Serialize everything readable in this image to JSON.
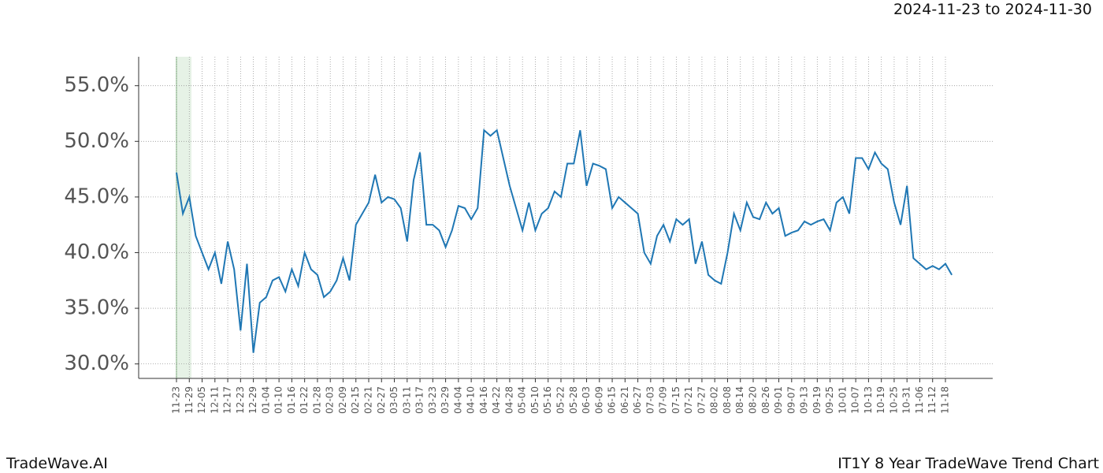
{
  "header": {
    "date_range": "2024-11-23 to 2024-11-30"
  },
  "footer": {
    "brand": "TradeWave.AI",
    "chart_name": "IT1Y 8 Year TradeWave Trend Chart"
  },
  "chart_data": {
    "type": "line",
    "x": [
      "11-23",
      "11-26",
      "11-29",
      "12-02",
      "12-05",
      "12-08",
      "12-11",
      "12-14",
      "12-17",
      "12-20",
      "12-23",
      "12-26",
      "12-29",
      "01-01",
      "01-04",
      "01-07",
      "01-10",
      "01-13",
      "01-16",
      "01-19",
      "01-22",
      "01-25",
      "01-28",
      "01-31",
      "02-03",
      "02-06",
      "02-09",
      "02-12",
      "02-15",
      "02-18",
      "02-21",
      "02-24",
      "02-27",
      "03-02",
      "03-05",
      "03-08",
      "03-11",
      "03-14",
      "03-17",
      "03-20",
      "03-23",
      "03-26",
      "03-29",
      "04-01",
      "04-04",
      "04-07",
      "04-10",
      "04-13",
      "04-16",
      "04-19",
      "04-22",
      "04-25",
      "04-28",
      "05-01",
      "05-04",
      "05-07",
      "05-10",
      "05-13",
      "05-16",
      "05-19",
      "05-22",
      "05-25",
      "05-28",
      "05-31",
      "06-03",
      "06-06",
      "06-09",
      "06-12",
      "06-15",
      "06-18",
      "06-21",
      "06-24",
      "06-27",
      "06-30",
      "07-03",
      "07-06",
      "07-09",
      "07-12",
      "07-15",
      "07-18",
      "07-21",
      "07-24",
      "07-27",
      "07-30",
      "08-02",
      "08-05",
      "08-08",
      "08-11",
      "08-14",
      "08-17",
      "08-20",
      "08-23",
      "08-26",
      "08-29",
      "09-01",
      "09-04",
      "09-07",
      "09-10",
      "09-13",
      "09-16",
      "09-19",
      "09-22",
      "09-25",
      "09-28",
      "10-01",
      "10-04",
      "10-07",
      "10-10",
      "10-13",
      "10-16",
      "10-19",
      "10-22",
      "10-25",
      "10-28",
      "10-31",
      "11-03",
      "11-06",
      "11-09",
      "11-12",
      "11-15",
      "11-18",
      "11-21"
    ],
    "series": [
      {
        "color": "#1f77b4",
        "values": [
          47.2,
          43.5,
          45.0,
          41.5,
          40.0,
          38.5,
          40.0,
          37.2,
          41.0,
          38.5,
          33.0,
          39.0,
          31.0,
          35.5,
          36.0,
          37.5,
          37.8,
          36.5,
          38.5,
          37.0,
          40.0,
          38.5,
          38.0,
          36.0,
          36.5,
          37.5,
          39.5,
          37.5,
          42.5,
          43.5,
          44.5,
          47.0,
          44.5,
          45.0,
          44.8,
          44.0,
          41.0,
          46.5,
          49.0,
          42.5,
          42.5,
          42.0,
          40.5,
          42.0,
          44.2,
          44.0,
          43.0,
          44.0,
          51.0,
          50.5,
          51.0,
          48.5,
          46.0,
          44.0,
          42.0,
          44.5,
          42.0,
          43.5,
          44.0,
          45.5,
          45.0,
          48.0,
          48.0,
          51.0,
          46.0,
          48.0,
          47.8,
          47.5,
          44.0,
          45.0,
          44.5,
          44.0,
          43.5,
          40.0,
          39.0,
          41.5,
          42.5,
          41.0,
          43.0,
          42.5,
          43.0,
          39.0,
          41.0,
          38.0,
          37.5,
          37.2,
          40.0,
          43.5,
          42.0,
          44.5,
          43.2,
          43.0,
          44.5,
          43.5,
          44.0,
          41.5,
          41.8,
          42.0,
          42.8,
          42.5,
          42.8,
          43.0,
          42.0,
          44.5,
          45.0,
          43.5,
          48.5,
          48.5,
          47.5,
          49.0,
          48.0,
          47.5,
          44.5,
          42.5,
          46.0,
          39.5,
          39.0,
          38.5,
          38.8,
          38.5,
          39.0,
          38.0
        ]
      }
    ],
    "highlight": [
      "11-23",
      "11-29"
    ],
    "highlight_color": "#e6f2e6",
    "ylim": [
      28.7,
      57.6
    ],
    "yticks": [
      {
        "value": 30,
        "label": "30.0%"
      },
      {
        "value": 35,
        "label": "35.0%"
      },
      {
        "value": 40,
        "label": "40.0%"
      },
      {
        "value": 45,
        "label": "45.0%"
      },
      {
        "value": 50,
        "label": "50.0%"
      },
      {
        "value": 55,
        "label": "55.0%"
      }
    ],
    "xticks": [
      "11-23",
      "11-29",
      "12-05",
      "12-11",
      "12-17",
      "12-23",
      "12-29",
      "01-04",
      "01-10",
      "01-16",
      "01-22",
      "01-28",
      "02-03",
      "02-09",
      "02-15",
      "02-21",
      "02-27",
      "03-05",
      "03-11",
      "03-17",
      "03-23",
      "03-29",
      "04-04",
      "04-10",
      "04-16",
      "04-22",
      "04-28",
      "05-04",
      "05-10",
      "05-16",
      "05-22",
      "05-28",
      "06-03",
      "06-09",
      "06-15",
      "06-21",
      "06-27",
      "07-03",
      "07-09",
      "07-15",
      "07-21",
      "07-27",
      "08-02",
      "08-08",
      "08-14",
      "08-20",
      "08-26",
      "09-01",
      "09-07",
      "09-13",
      "09-19",
      "09-25",
      "10-01",
      "10-07",
      "10-13",
      "10-19",
      "10-25",
      "10-31",
      "11-06",
      "11-12",
      "11-18"
    ],
    "grid": true
  }
}
